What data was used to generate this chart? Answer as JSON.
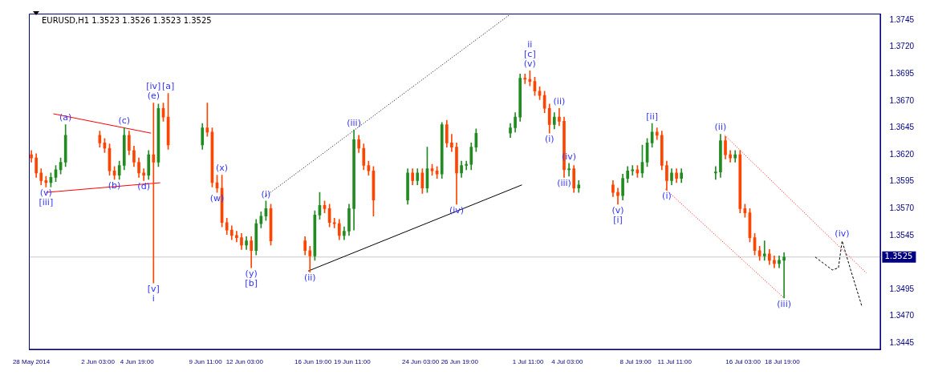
{
  "chart_data": {
    "type": "candlestick",
    "title": "EURUSD,H1 1.3523 1.3526 1.3523 1.3525",
    "legend": false,
    "grid": false,
    "xlim": [
      "2014-05-28T10:00",
      "2014-07-25T12:00"
    ],
    "ylim": [
      1.3439,
      1.3751
    ],
    "xticks": [
      {
        "value": "2014-05-28T14:00",
        "label": "28 May 2014"
      },
      {
        "value": "2014-06-02T03:00",
        "label": "2 Jun 03:00"
      },
      {
        "value": "2014-06-04T19:00",
        "label": "4 Jun 19:00"
      },
      {
        "value": "2014-06-09T11:00",
        "label": "9 Jun 11:00"
      },
      {
        "value": "2014-06-12T03:00",
        "label": "12 Jun 03:00"
      },
      {
        "value": "2014-06-16T19:00",
        "label": "16 Jun 19:00"
      },
      {
        "value": "2014-06-19T11:00",
        "label": "19 Jun 11:00"
      },
      {
        "value": "2014-06-24T03:00",
        "label": "24 Jun 03:00"
      },
      {
        "value": "2014-06-26T19:00",
        "label": "26 Jun 19:00"
      },
      {
        "value": "2014-07-01T11:00",
        "label": "1 Jul 11:00"
      },
      {
        "value": "2014-07-04T03:00",
        "label": "4 Jul 03:00"
      },
      {
        "value": "2014-07-08T19:00",
        "label": "8 Jul 19:00"
      },
      {
        "value": "2014-07-11T11:00",
        "label": "11 Jul 11:00"
      },
      {
        "value": "2014-07-16T03:00",
        "label": "16 Jul 03:00"
      },
      {
        "value": "2014-07-18T19:00",
        "label": "18 Jul 19:00"
      }
    ],
    "yticks": [
      {
        "value": 1.3445,
        "label": "1.3445"
      },
      {
        "value": 1.347,
        "label": "1.3470"
      },
      {
        "value": 1.3495,
        "label": "1.3495"
      },
      {
        "value": 1.3545,
        "label": "1.3545"
      },
      {
        "value": 1.357,
        "label": "1.3570"
      },
      {
        "value": 1.3595,
        "label": "1.3595"
      },
      {
        "value": 1.362,
        "label": "1.3620"
      },
      {
        "value": 1.3645,
        "label": "1.3645"
      },
      {
        "value": 1.367,
        "label": "1.3670"
      },
      {
        "value": 1.3695,
        "label": "1.3695"
      },
      {
        "value": 1.372,
        "label": "1.3720"
      },
      {
        "value": 1.3745,
        "label": "1.3745"
      }
    ],
    "ref_lines": [
      {
        "axis": "y",
        "value": 1.3525,
        "label": "1.3525",
        "color": "#c8c8c8"
      }
    ],
    "series": [
      {
        "type": "candlestick",
        "x": [
          "2014-05-28T14:00",
          "2014-05-28T22:00",
          "2014-05-29T06:00",
          "2014-05-29T14:00",
          "2014-05-29T22:00",
          "2014-05-30T06:00",
          "2014-05-30T14:00",
          "2014-05-30T22:00",
          "2014-06-02T06:00",
          "2014-06-02T14:00",
          "2014-06-02T22:00",
          "2014-06-03T06:00",
          "2014-06-03T14:00",
          "2014-06-03T22:00",
          "2014-06-04T06:00",
          "2014-06-04T14:00",
          "2014-06-04T22:00",
          "2014-06-05T06:00",
          "2014-06-05T14:00",
          "2014-06-05T22:00",
          "2014-06-06T06:00",
          "2014-06-06T14:00",
          "2014-06-06T22:00",
          "2014-06-09T06:00",
          "2014-06-09T14:00",
          "2014-06-09T22:00",
          "2014-06-10T06:00",
          "2014-06-10T14:00",
          "2014-06-10T22:00",
          "2014-06-11T06:00",
          "2014-06-11T14:00",
          "2014-06-11T22:00",
          "2014-06-12T06:00",
          "2014-06-12T14:00",
          "2014-06-12T22:00",
          "2014-06-13T06:00",
          "2014-06-13T14:00",
          "2014-06-13T22:00",
          "2014-06-16T06:00",
          "2014-06-16T14:00",
          "2014-06-16T22:00",
          "2014-06-17T06:00",
          "2014-06-17T14:00",
          "2014-06-17T22:00",
          "2014-06-18T06:00",
          "2014-06-18T14:00",
          "2014-06-18T22:00",
          "2014-06-19T06:00",
          "2014-06-19T14:00",
          "2014-06-19T22:00",
          "2014-06-20T06:00",
          "2014-06-20T14:00",
          "2014-06-20T22:00",
          "2014-06-23T06:00",
          "2014-06-23T14:00",
          "2014-06-23T22:00",
          "2014-06-24T06:00",
          "2014-06-24T14:00",
          "2014-06-24T22:00",
          "2014-06-25T06:00",
          "2014-06-25T14:00",
          "2014-06-25T22:00",
          "2014-06-26T06:00",
          "2014-06-26T14:00",
          "2014-06-26T22:00",
          "2014-06-27T06:00",
          "2014-06-27T14:00",
          "2014-06-27T22:00",
          "2014-06-30T06:00",
          "2014-06-30T14:00",
          "2014-06-30T22:00",
          "2014-07-01T06:00",
          "2014-07-01T14:00",
          "2014-07-01T22:00",
          "2014-07-02T06:00",
          "2014-07-02T14:00",
          "2014-07-02T22:00",
          "2014-07-03T06:00",
          "2014-07-03T14:00",
          "2014-07-03T22:00",
          "2014-07-04T06:00",
          "2014-07-04T14:00",
          "2014-07-04T22:00",
          "2014-07-07T06:00",
          "2014-07-07T14:00",
          "2014-07-07T22:00",
          "2014-07-08T06:00",
          "2014-07-08T14:00",
          "2014-07-08T22:00",
          "2014-07-09T06:00",
          "2014-07-09T14:00",
          "2014-07-09T22:00",
          "2014-07-10T06:00",
          "2014-07-10T14:00",
          "2014-07-10T22:00",
          "2014-07-11T06:00",
          "2014-07-11T14:00",
          "2014-07-11T22:00",
          "2014-07-14T06:00",
          "2014-07-14T14:00",
          "2014-07-14T22:00",
          "2014-07-15T06:00",
          "2014-07-15T14:00",
          "2014-07-15T22:00",
          "2014-07-16T06:00",
          "2014-07-16T14:00",
          "2014-07-16T22:00",
          "2014-07-17T06:00",
          "2014-07-17T14:00",
          "2014-07-17T22:00",
          "2014-07-18T06:00",
          "2014-07-18T14:00",
          "2014-07-18T22:00"
        ],
        "ohlc": [
          [
            1.362,
            1.3624,
            1.3613,
            1.3617
          ],
          [
            1.3617,
            1.3621,
            1.3599,
            1.3603
          ],
          [
            1.3603,
            1.3607,
            1.3592,
            1.3596
          ],
          [
            1.3596,
            1.36,
            1.359,
            1.3594
          ],
          [
            1.3594,
            1.3603,
            1.359,
            1.3599
          ],
          [
            1.3599,
            1.361,
            1.3595,
            1.3606
          ],
          [
            1.3606,
            1.3617,
            1.3602,
            1.3613
          ],
          [
            1.3613,
            1.3648,
            1.3609,
            1.3638
          ],
          [
            1.3638,
            1.3642,
            1.3627,
            1.3631
          ],
          [
            1.3631,
            1.3635,
            1.3622,
            1.3626
          ],
          [
            1.3626,
            1.363,
            1.3601,
            1.3605
          ],
          [
            1.3605,
            1.3609,
            1.3597,
            1.3601
          ],
          [
            1.3601,
            1.3614,
            1.3597,
            1.361
          ],
          [
            1.361,
            1.3645,
            1.3606,
            1.3638
          ],
          [
            1.3638,
            1.3642,
            1.362,
            1.3624
          ],
          [
            1.3624,
            1.3628,
            1.3609,
            1.3613
          ],
          [
            1.3613,
            1.3617,
            1.3599,
            1.3603
          ],
          [
            1.3603,
            1.3607,
            1.3596,
            1.3601
          ],
          [
            1.3601,
            1.3624,
            1.3597,
            1.362
          ],
          [
            1.362,
            1.3668,
            1.3501,
            1.3613
          ],
          [
            1.3613,
            1.3667,
            1.3609,
            1.3663
          ],
          [
            1.3663,
            1.3668,
            1.3651,
            1.3655
          ],
          [
            1.3655,
            1.3677,
            1.3625,
            1.3629
          ],
          [
            1.3629,
            1.3649,
            1.3625,
            1.3645
          ],
          [
            1.3645,
            1.3668,
            1.3637,
            1.3641
          ],
          [
            1.3641,
            1.3645,
            1.359,
            1.3594
          ],
          [
            1.3594,
            1.3601,
            1.3585,
            1.3589
          ],
          [
            1.3589,
            1.3601,
            1.3553,
            1.3557
          ],
          [
            1.3557,
            1.3561,
            1.3546,
            1.355
          ],
          [
            1.355,
            1.3554,
            1.3541,
            1.3545
          ],
          [
            1.3545,
            1.3549,
            1.3539,
            1.3543
          ],
          [
            1.3543,
            1.3547,
            1.3532,
            1.3536
          ],
          [
            1.3536,
            1.3544,
            1.3532,
            1.354
          ],
          [
            1.354,
            1.3544,
            1.3515,
            1.3531
          ],
          [
            1.3531,
            1.356,
            1.3527,
            1.3556
          ],
          [
            1.3556,
            1.3567,
            1.3552,
            1.3563
          ],
          [
            1.3563,
            1.3577,
            1.3559,
            1.357
          ],
          [
            1.357,
            1.3574,
            1.3536,
            1.354
          ],
          [
            1.354,
            1.3544,
            1.3527,
            1.3531
          ],
          [
            1.3531,
            1.3535,
            1.3511,
            1.3526
          ],
          [
            1.3526,
            1.3568,
            1.3522,
            1.3564
          ],
          [
            1.3564,
            1.3585,
            1.356,
            1.3573
          ],
          [
            1.3573,
            1.3577,
            1.3566,
            1.357
          ],
          [
            1.357,
            1.3574,
            1.3553,
            1.3557
          ],
          [
            1.3557,
            1.3561,
            1.3552,
            1.3556
          ],
          [
            1.3556,
            1.356,
            1.3541,
            1.3545
          ],
          [
            1.3545,
            1.3553,
            1.3541,
            1.3549
          ],
          [
            1.3549,
            1.3574,
            1.3545,
            1.357
          ],
          [
            1.357,
            1.3643,
            1.355,
            1.3634
          ],
          [
            1.3634,
            1.3638,
            1.3622,
            1.3626
          ],
          [
            1.3626,
            1.363,
            1.3606,
            1.361
          ],
          [
            1.361,
            1.3614,
            1.3601,
            1.3605
          ],
          [
            1.3605,
            1.3609,
            1.3563,
            1.3578
          ],
          [
            1.3578,
            1.3607,
            1.3574,
            1.3603
          ],
          [
            1.3603,
            1.3607,
            1.3592,
            1.3596
          ],
          [
            1.3596,
            1.3607,
            1.3592,
            1.3603
          ],
          [
            1.3603,
            1.3607,
            1.3584,
            1.3589
          ],
          [
            1.3589,
            1.3627,
            1.3585,
            1.3607
          ],
          [
            1.3607,
            1.3611,
            1.3601,
            1.3605
          ],
          [
            1.3605,
            1.3609,
            1.3598,
            1.3602
          ],
          [
            1.3602,
            1.365,
            1.3598,
            1.3648
          ],
          [
            1.3648,
            1.3652,
            1.3627,
            1.3631
          ],
          [
            1.3631,
            1.3639,
            1.3623,
            1.3627
          ],
          [
            1.3627,
            1.3631,
            1.3574,
            1.3603
          ],
          [
            1.3603,
            1.3614,
            1.3599,
            1.361
          ],
          [
            1.361,
            1.3614,
            1.3606,
            1.3611
          ],
          [
            1.3611,
            1.3631,
            1.3606,
            1.3627
          ],
          [
            1.3627,
            1.3644,
            1.3623,
            1.364
          ],
          [
            1.364,
            1.3649,
            1.3636,
            1.3645
          ],
          [
            1.3645,
            1.3659,
            1.3641,
            1.3655
          ],
          [
            1.3655,
            1.3695,
            1.3651,
            1.3691
          ],
          [
            1.3691,
            1.3695,
            1.3686,
            1.369
          ],
          [
            1.369,
            1.3698,
            1.3684,
            1.3688
          ],
          [
            1.3688,
            1.3692,
            1.3675,
            1.3679
          ],
          [
            1.3679,
            1.3683,
            1.3671,
            1.3675
          ],
          [
            1.3675,
            1.3679,
            1.3659,
            1.3663
          ],
          [
            1.3663,
            1.3667,
            1.364,
            1.3648
          ],
          [
            1.3648,
            1.3659,
            1.3644,
            1.3655
          ],
          [
            1.3655,
            1.3663,
            1.3647,
            1.3651
          ],
          [
            1.3651,
            1.3655,
            1.3599,
            1.3606
          ],
          [
            1.3606,
            1.3612,
            1.36,
            1.3607
          ],
          [
            1.3607,
            1.361,
            1.3585,
            1.3589
          ],
          [
            1.3589,
            1.3596,
            1.3585,
            1.3592
          ],
          [
            1.3592,
            1.3596,
            1.3581,
            1.3585
          ],
          [
            1.3585,
            1.3589,
            1.3574,
            1.3582
          ],
          [
            1.3582,
            1.3602,
            1.3578,
            1.3598
          ],
          [
            1.3598,
            1.3609,
            1.3594,
            1.3605
          ],
          [
            1.3605,
            1.361,
            1.3601,
            1.3606
          ],
          [
            1.3606,
            1.361,
            1.3599,
            1.3603
          ],
          [
            1.3603,
            1.3629,
            1.3599,
            1.3613
          ],
          [
            1.3613,
            1.3635,
            1.3609,
            1.3631
          ],
          [
            1.3631,
            1.3649,
            1.3627,
            1.3641
          ],
          [
            1.3641,
            1.3645,
            1.3634,
            1.3638
          ],
          [
            1.3638,
            1.3642,
            1.3606,
            1.361
          ],
          [
            1.361,
            1.3614,
            1.3587,
            1.3596
          ],
          [
            1.3596,
            1.3607,
            1.3592,
            1.3603
          ],
          [
            1.3603,
            1.3607,
            1.3594,
            1.3598
          ],
          [
            1.3598,
            1.3607,
            1.3594,
            1.3603
          ],
          [
            1.3603,
            1.3609,
            1.3597,
            1.3604
          ],
          [
            1.3604,
            1.3639,
            1.3599,
            1.3633
          ],
          [
            1.3633,
            1.3637,
            1.3616,
            1.362
          ],
          [
            1.362,
            1.3624,
            1.3613,
            1.3617
          ],
          [
            1.3617,
            1.3624,
            1.3613,
            1.362
          ],
          [
            1.362,
            1.3624,
            1.3566,
            1.357
          ],
          [
            1.357,
            1.3574,
            1.3562,
            1.3566
          ],
          [
            1.3566,
            1.357,
            1.3539,
            1.3543
          ],
          [
            1.3543,
            1.3547,
            1.3527,
            1.3531
          ],
          [
            1.3531,
            1.3535,
            1.3522,
            1.3526
          ],
          [
            1.3526,
            1.354,
            1.3522,
            1.3528
          ],
          [
            1.3528,
            1.3532,
            1.3518,
            1.3522
          ],
          [
            1.3522,
            1.3526,
            1.3515,
            1.3519
          ],
          [
            1.3519,
            1.3526,
            1.3515,
            1.3522
          ],
          [
            1.3522,
            1.3529,
            1.3487,
            1.3525
          ]
        ],
        "colors": [
          "#ff4500",
          "#ff4500",
          "#ff4500",
          "#ff4500",
          "#228b22",
          "#228b22",
          "#228b22",
          "#228b22",
          "#ff4500",
          "#ff4500",
          "#ff4500",
          "#ff4500",
          "#228b22",
          "#228b22",
          "#ff4500",
          "#ff4500",
          "#ff4500",
          "#ff4500",
          "#228b22",
          "#ff4500",
          "#228b22",
          "#ff4500",
          "#ff4500",
          "#228b22",
          "#ff4500",
          "#ff4500",
          "#ff4500",
          "#ff4500",
          "#ff4500",
          "#ff4500",
          "#ff4500",
          "#ff4500",
          "#228b22",
          "#ff4500",
          "#228b22",
          "#228b22",
          "#228b22",
          "#ff4500",
          "#ff4500",
          "#ff4500",
          "#228b22",
          "#228b22",
          "#ff4500",
          "#ff4500",
          "#ff4500",
          "#ff4500",
          "#228b22",
          "#228b22",
          "#228b22",
          "#ff4500",
          "#ff4500",
          "#ff4500",
          "#ff4500",
          "#228b22",
          "#ff4500",
          "#228b22",
          "#ff4500",
          "#228b22",
          "#ff4500",
          "#ff4500",
          "#228b22",
          "#ff4500",
          "#ff4500",
          "#ff4500",
          "#228b22",
          "#228b22",
          "#228b22",
          "#228b22",
          "#228b22",
          "#228b22",
          "#228b22",
          "#ff4500",
          "#ff4500",
          "#ff4500",
          "#ff4500",
          "#ff4500",
          "#ff4500",
          "#228b22",
          "#ff4500",
          "#ff4500",
          "#228b22",
          "#ff4500",
          "#228b22",
          "#ff4500",
          "#ff4500",
          "#228b22",
          "#228b22",
          "#228b22",
          "#ff4500",
          "#228b22",
          "#228b22",
          "#228b22",
          "#ff4500",
          "#ff4500",
          "#ff4500",
          "#228b22",
          "#ff4500",
          "#228b22",
          "#228b22",
          "#228b22",
          "#ff4500",
          "#ff4500",
          "#228b22",
          "#ff4500",
          "#ff4500",
          "#ff4500",
          "#ff4500",
          "#ff4500",
          "#228b22",
          "#ff4500",
          "#ff4500",
          "#228b22",
          "#228b22"
        ]
      },
      {
        "type": "line",
        "x": [
          "2014-05-30T02:00",
          "2014-06-05T18:00"
        ],
        "values": [
          1.3658,
          1.364
        ],
        "color": "#ff0000",
        "line_style": "solid"
      },
      {
        "type": "line",
        "x": [
          "2014-05-29T14:00",
          "2014-06-06T09:00"
        ],
        "values": [
          1.3585,
          1.3594
        ],
        "color": "#ff0000",
        "line_style": "solid"
      },
      {
        "type": "line",
        "x": [
          "2014-06-13T12:00",
          "2014-06-30T05:00"
        ],
        "values": [
          1.3581,
          1.375
        ],
        "color": "#000000",
        "line_style": "dotted"
      },
      {
        "type": "line",
        "x": [
          "2014-06-16T11:00",
          "2014-07-01T01:00"
        ],
        "values": [
          1.3512,
          1.3592
        ],
        "color": "#000000",
        "line_style": "solid"
      },
      {
        "type": "line",
        "x": [
          "2014-07-14T21:00",
          "2014-07-24T13:00"
        ],
        "values": [
          1.3638,
          1.351
        ],
        "color": "#ff0000",
        "line_style": "dotted"
      },
      {
        "type": "line",
        "x": [
          "2014-07-10T20:00",
          "2014-07-18T22:00"
        ],
        "values": [
          1.3588,
          1.3487
        ],
        "color": "#ff0000",
        "line_style": "dotted"
      },
      {
        "type": "line",
        "x": [
          "2014-07-21T01:00",
          "2014-07-22T05:00",
          "2014-07-22T15:00",
          "2014-07-22T21:00",
          "2014-07-23T10:00",
          "2014-07-24T05:00"
        ],
        "values": [
          1.3525,
          1.3513,
          1.3515,
          1.354,
          1.3515,
          1.348
        ],
        "color": "#000000",
        "line_style": "dashed"
      }
    ],
    "annotations": [
      {
        "text": "(v)",
        "x": "2014-05-29T14:00",
        "y": 1.359
      },
      {
        "text": "[iii]",
        "x": "2014-05-29T14:00",
        "y": 1.359
      },
      {
        "text": "(a)",
        "x": "2014-05-30T22:00",
        "y": 1.3648
      },
      {
        "text": "(b)",
        "x": "2014-06-03T06:00",
        "y": 1.3597
      },
      {
        "text": "(c)",
        "x": "2014-06-03T22:00",
        "y": 1.3645
      },
      {
        "text": "(d)",
        "x": "2014-06-05T06:00",
        "y": 1.3596
      },
      {
        "text": "(e)",
        "x": "2014-06-05T22:00",
        "y": 1.3668
      },
      {
        "text": "[iv]",
        "x": "2014-06-05T22:00",
        "y": 1.3668
      },
      {
        "text": "[v]",
        "x": "2014-06-05T22:00",
        "y": 1.3501
      },
      {
        "text": "i",
        "x": "2014-06-05T22:00",
        "y": 1.3501
      },
      {
        "text": "[a]",
        "x": "2014-06-06T22:00",
        "y": 1.3677
      },
      {
        "text": "(w)",
        "x": "2014-06-10T06:00",
        "y": 1.3585
      },
      {
        "text": "(x)",
        "x": "2014-06-10T14:00",
        "y": 1.3601
      },
      {
        "text": "(y)",
        "x": "2014-06-12T14:00",
        "y": 1.3515
      },
      {
        "text": "[b]",
        "x": "2014-06-12T14:00",
        "y": 1.3515
      },
      {
        "text": "(i)",
        "x": "2014-06-13T14:00",
        "y": 1.3577
      },
      {
        "text": "(ii)",
        "x": "2014-06-16T14:00",
        "y": 1.3511
      },
      {
        "text": "(iii)",
        "x": "2014-06-19T14:00",
        "y": 1.3643
      },
      {
        "text": "(iv)",
        "x": "2014-06-26T14:00",
        "y": 1.3574
      },
      {
        "text": "(v)",
        "x": "2014-07-01T14:00",
        "y": 1.3698
      },
      {
        "text": "[c]",
        "x": "2014-07-01T14:00",
        "y": 1.3698
      },
      {
        "text": "ii",
        "x": "2014-07-01T14:00",
        "y": 1.3698
      },
      {
        "text": "(i)",
        "x": "2014-07-02T22:00",
        "y": 1.364
      },
      {
        "text": "(ii)",
        "x": "2014-07-03T14:00",
        "y": 1.3663
      },
      {
        "text": "(iii)",
        "x": "2014-07-03T22:00",
        "y": 1.3599
      },
      {
        "text": "(iv)",
        "x": "2014-07-04T06:00",
        "y": 1.3612
      },
      {
        "text": "(v)",
        "x": "2014-07-07T14:00",
        "y": 1.3574
      },
      {
        "text": "[i]",
        "x": "2014-07-07T14:00",
        "y": 1.3574
      },
      {
        "text": "[ii]",
        "x": "2014-07-09T22:00",
        "y": 1.3649
      },
      {
        "text": "(i)",
        "x": "2014-07-10T22:00",
        "y": 1.3587
      },
      {
        "text": "(ii)",
        "x": "2014-07-14T14:00",
        "y": 1.3639
      },
      {
        "text": "(iii)",
        "x": "2014-07-18T22:00",
        "y": 1.3487
      },
      {
        "text": "(iv)",
        "x": "2014-07-22T21:00",
        "y": 1.354
      }
    ]
  }
}
